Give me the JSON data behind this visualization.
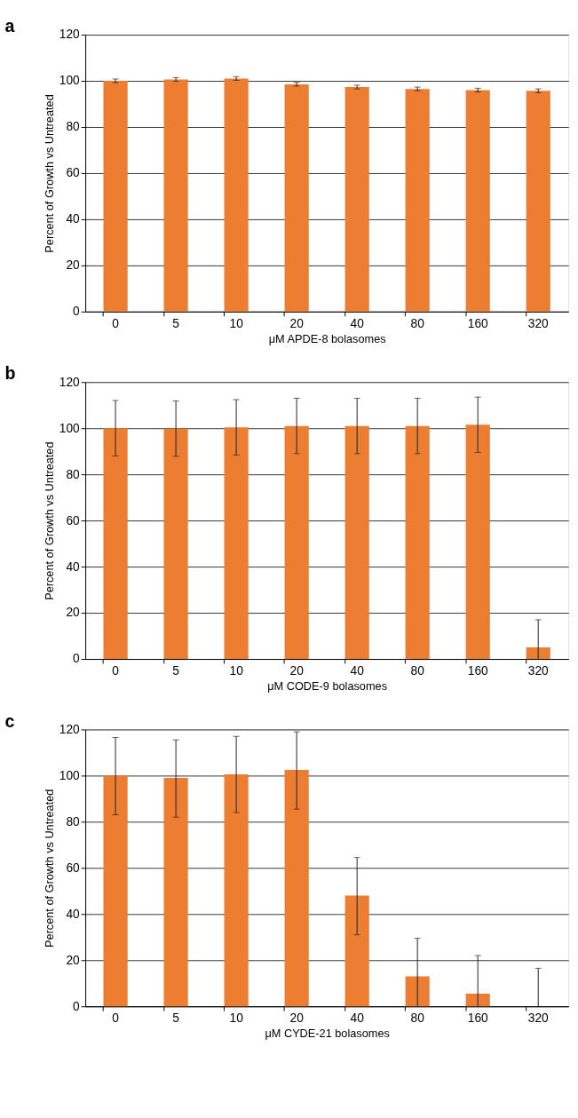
{
  "chart_data": [
    {
      "type": "bar",
      "title": "a",
      "xlabel": "μM APDE-8 bolasomes",
      "ylabel": "Percent of Growth vs Untreated",
      "categories": [
        "0",
        "5",
        "10",
        "20",
        "40",
        "80",
        "160",
        "320"
      ],
      "series": [
        {
          "color": "#ed7d31",
          "values": [
            100,
            100.6,
            101,
            98.5,
            97.3,
            96.5,
            96,
            95.7
          ],
          "errors": [
            0.8,
            0.8,
            0.8,
            0.8,
            0.8,
            0.8,
            0.8,
            0.8
          ]
        }
      ],
      "ylim": [
        0,
        120
      ],
      "yticks": [
        0,
        20,
        40,
        60,
        80,
        100,
        120
      ],
      "grid": "y",
      "legend": false
    },
    {
      "type": "bar",
      "title": "b",
      "xlabel": "μM CODE-9 bolasomes",
      "ylabel": "Percent of Growth vs Untreated",
      "categories": [
        "0",
        "5",
        "10",
        "20",
        "40",
        "80",
        "160",
        "320"
      ],
      "series": [
        {
          "color": "#ed7d31",
          "values": [
            100,
            99.8,
            100.4,
            101,
            101,
            101,
            101.5,
            5
          ],
          "errors": [
            12,
            12,
            12,
            12,
            12,
            12,
            12,
            [
              0,
              17
            ]
          ]
        }
      ],
      "ylim": [
        0,
        120
      ],
      "yticks": [
        0,
        20,
        40,
        60,
        80,
        100,
        120
      ],
      "grid": "y",
      "legend": false
    },
    {
      "type": "bar",
      "title": "c",
      "xlabel": "μM CYDE-21 bolasomes",
      "ylabel": "Percent of Growth vs Untreated",
      "categories": [
        "0",
        "5",
        "10",
        "20",
        "40",
        "80",
        "160",
        "320"
      ],
      "series": [
        {
          "color": "#ed7d31",
          "values": [
            100,
            99,
            100.5,
            102.5,
            48,
            13,
            5.5,
            0
          ],
          "errors": [
            [
              83,
              116.5
            ],
            [
              82,
              115.5
            ],
            [
              84,
              117
            ],
            [
              85.5,
              119
            ],
            [
              31,
              64.5
            ],
            [
              0,
              29.5
            ],
            [
              0,
              22
            ],
            [
              0,
              16.5
            ]
          ]
        }
      ],
      "ylim": [
        0,
        120
      ],
      "yticks": [
        0,
        20,
        40,
        60,
        80,
        100,
        120
      ],
      "grid": "y",
      "legend": false
    }
  ]
}
